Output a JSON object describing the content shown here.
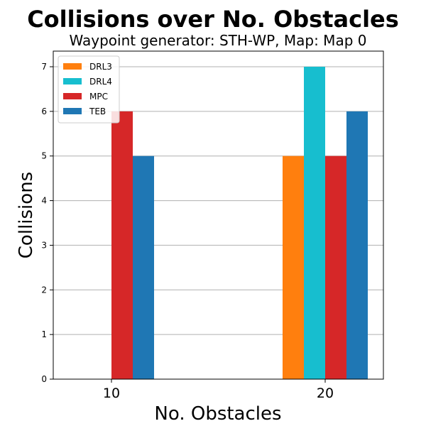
{
  "chart_data": {
    "type": "bar",
    "title": "Collisions over No. Obstacles",
    "subtitle": "Waypoint generator: STH-WP, Map: Map 0",
    "xlabel": "No. Obstacles",
    "ylabel": "Collisions",
    "categories": [
      "10",
      "20"
    ],
    "ylim": [
      0,
      7.35
    ],
    "yticks": [
      0,
      1,
      2,
      3,
      4,
      5,
      6,
      7
    ],
    "grid": "y",
    "legend_position": "top-left",
    "series": [
      {
        "name": "DRL3",
        "color": "#ff7f0e",
        "values": [
          0,
          5
        ]
      },
      {
        "name": "DRL4",
        "color": "#17becf",
        "values": [
          0,
          7
        ]
      },
      {
        "name": "MPC",
        "color": "#d62728",
        "values": [
          6,
          5
        ]
      },
      {
        "name": "TEB",
        "color": "#1f77b4",
        "values": [
          5,
          6
        ]
      }
    ]
  }
}
